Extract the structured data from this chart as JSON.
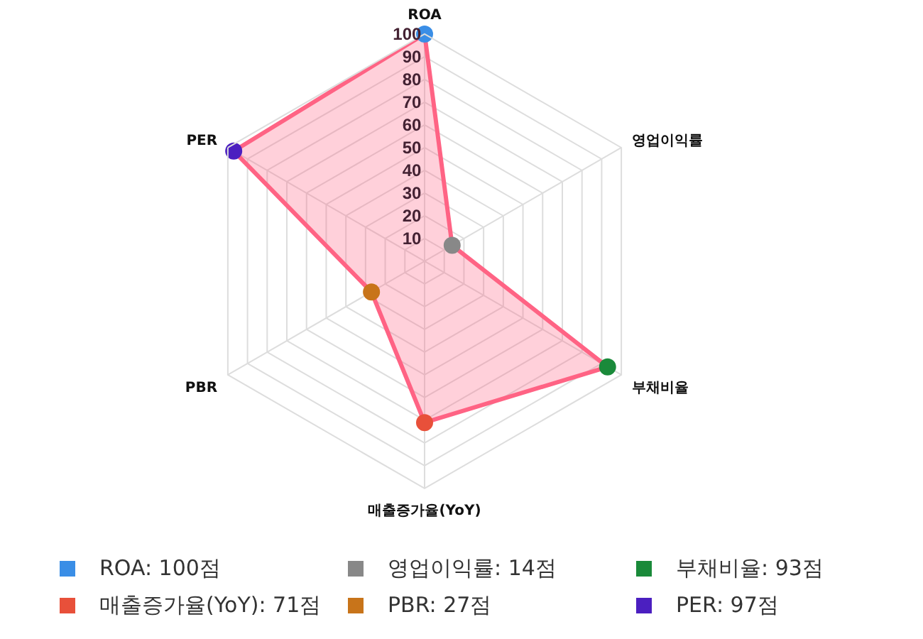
{
  "chart_data": {
    "type": "radar",
    "categories": [
      "ROA",
      "영업이익률",
      "부채비율",
      "매출증가율(YoY)",
      "PBR",
      "PER"
    ],
    "series": [
      {
        "color": "#ff6384",
        "colors": [
          "#3a8ee6",
          "#888888",
          "#1a8a3a",
          "#e8503a",
          "#c8741a",
          "#4b1fc0"
        ],
        "values": [
          100,
          14,
          93,
          71,
          27,
          97
        ]
      }
    ],
    "annotations": [
      "ROA: 100점",
      "영업이익률: 14점",
      "부채비율: 93점",
      "매출증가율(YoY): 71점",
      "PBR: 27점",
      "PER: 97점"
    ],
    "ylim": [
      0,
      100
    ],
    "yticks": [
      10,
      20,
      30,
      40,
      50,
      60,
      70,
      80,
      90,
      100
    ],
    "grid": true,
    "marker": "circle"
  }
}
